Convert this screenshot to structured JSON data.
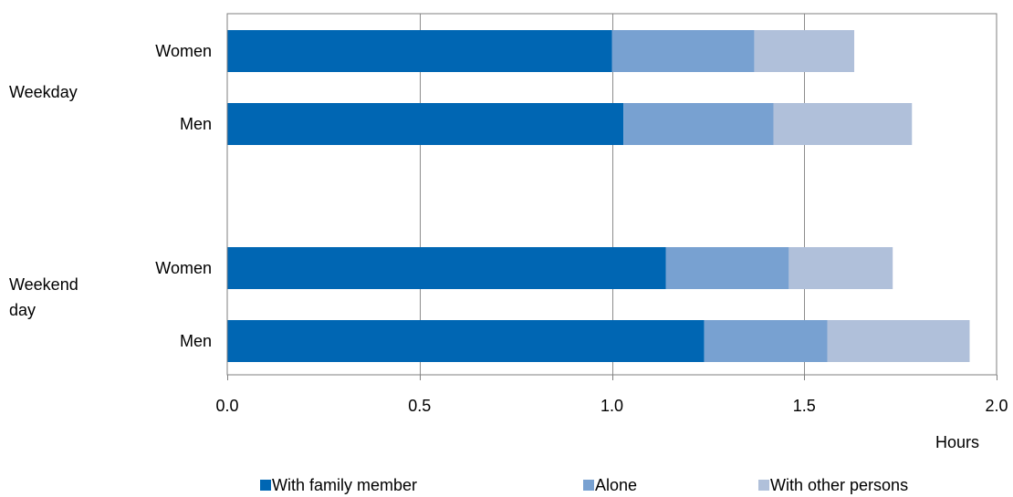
{
  "chart_data": {
    "type": "bar",
    "orientation": "horizontal",
    "stacked": true,
    "xlabel": "Hours",
    "xlim": [
      0,
      2.0
    ],
    "xticks": [
      "0.0",
      "0.5",
      "1.0",
      "1.5",
      "2.0"
    ],
    "grid": true,
    "legend_position": "bottom",
    "groups": [
      {
        "label": "Weekday",
        "categories": [
          "Women",
          "Men"
        ]
      },
      {
        "label": "Weekend day",
        "categories": [
          "Women",
          "Men"
        ]
      }
    ],
    "series": [
      {
        "name": "With family member",
        "color": "#0066b3",
        "values": [
          1.0,
          1.03,
          1.14,
          1.24
        ]
      },
      {
        "name": "Alone",
        "color": "#78a1d1",
        "values": [
          0.37,
          0.39,
          0.32,
          0.32
        ]
      },
      {
        "name": "With other persons",
        "color": "#b0c0da",
        "values": [
          0.26,
          0.36,
          0.27,
          0.37
        ]
      }
    ]
  }
}
